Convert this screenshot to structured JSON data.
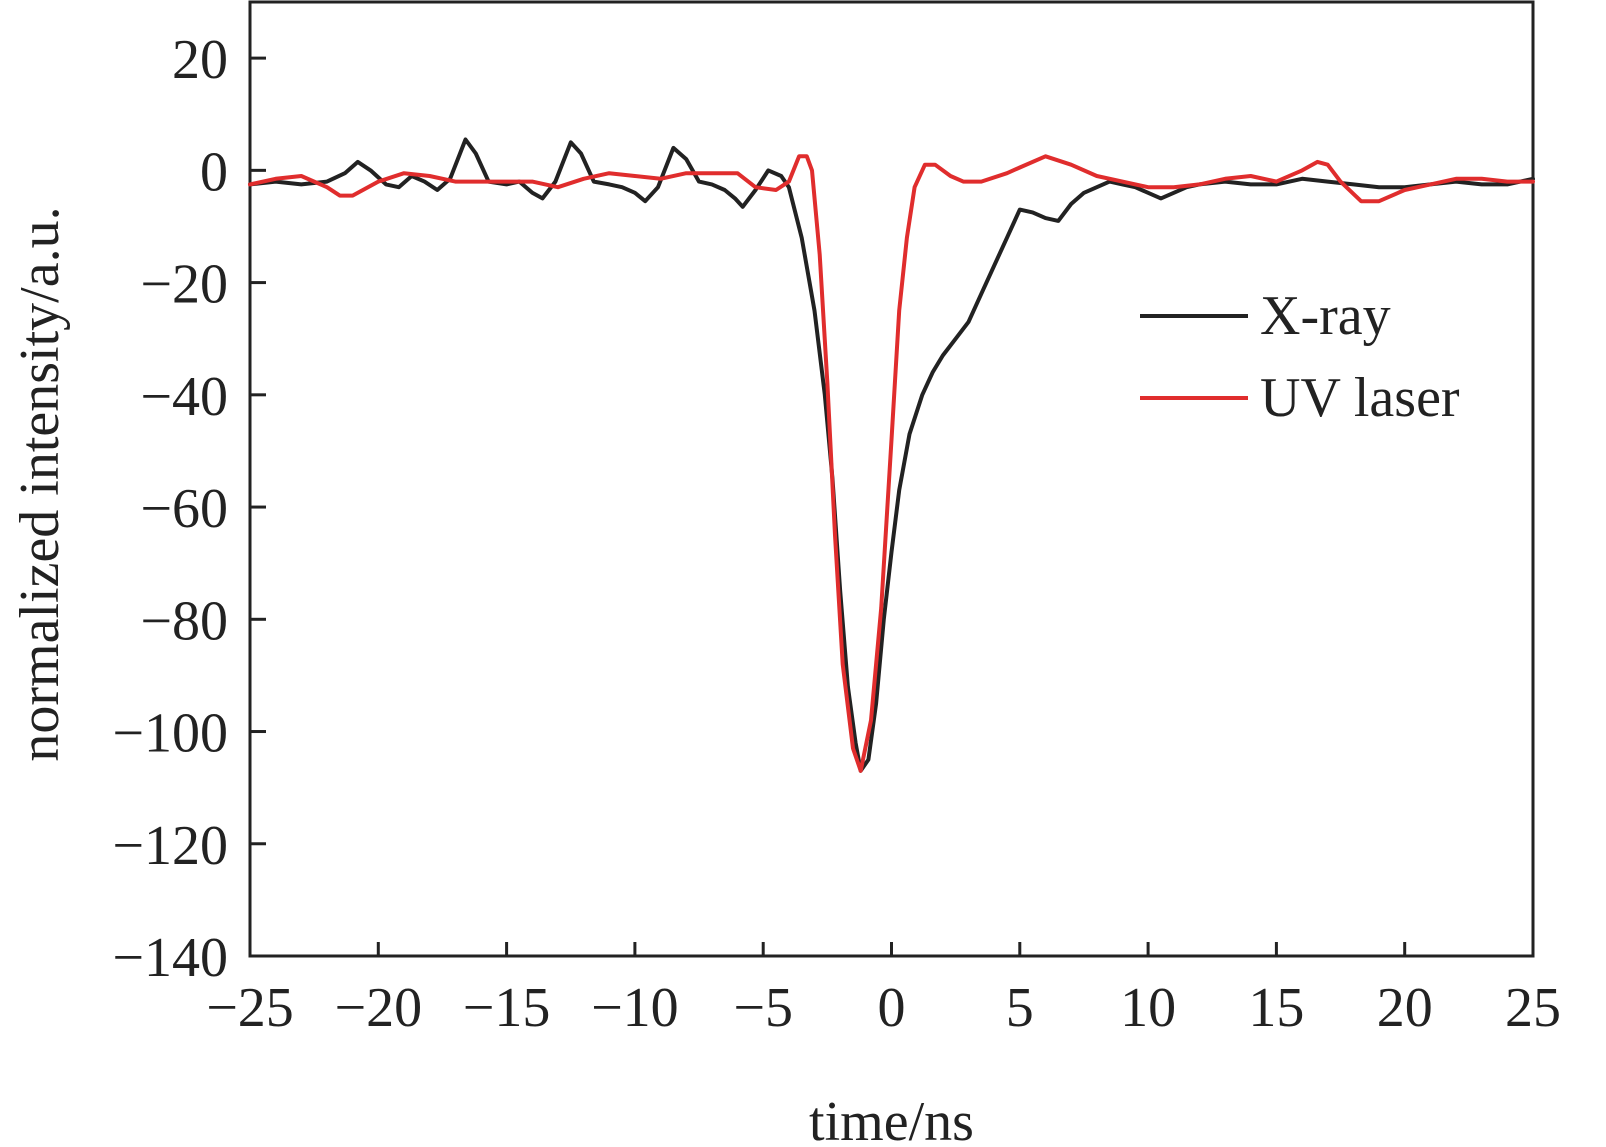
{
  "chart_data": {
    "type": "line",
    "xlabel": "time/ns",
    "ylabel": "normalized intensity/a.u.",
    "xlim": [
      -25,
      25
    ],
    "ylim": [
      -140,
      30
    ],
    "x_ticks": [
      -25,
      -20,
      -15,
      -10,
      -5,
      0,
      5,
      10,
      15,
      20,
      25
    ],
    "x_tick_labels": [
      "−25",
      "−20",
      "−15",
      "−10",
      "−5",
      "0",
      "5",
      "10",
      "15",
      "20",
      "25"
    ],
    "y_ticks": [
      20,
      0,
      -20,
      -40,
      -60,
      -80,
      -100,
      -120,
      -140
    ],
    "y_tick_labels": [
      "20",
      "0",
      "−20",
      "−40",
      "−60",
      "−80",
      "−100",
      "−120",
      "−140"
    ],
    "legend_position": "right",
    "series": [
      {
        "name": "X-ray",
        "color": "#222222",
        "points": [
          [
            -25,
            -2.5
          ],
          [
            -24,
            -2
          ],
          [
            -23,
            -2.5
          ],
          [
            -22,
            -2
          ],
          [
            -21.3,
            -0.5
          ],
          [
            -20.8,
            1.5
          ],
          [
            -20.3,
            0
          ],
          [
            -19.7,
            -2.5
          ],
          [
            -19.2,
            -3
          ],
          [
            -18.7,
            -1
          ],
          [
            -18.2,
            -2
          ],
          [
            -17.7,
            -3.5
          ],
          [
            -17.2,
            -1.5
          ],
          [
            -16.6,
            5.5
          ],
          [
            -16.2,
            3
          ],
          [
            -15.7,
            -2
          ],
          [
            -15,
            -2.5
          ],
          [
            -14.5,
            -2
          ],
          [
            -14,
            -4
          ],
          [
            -13.6,
            -5
          ],
          [
            -13.1,
            -2
          ],
          [
            -12.5,
            5
          ],
          [
            -12.1,
            3
          ],
          [
            -11.6,
            -2
          ],
          [
            -11,
            -2.5
          ],
          [
            -10.5,
            -3
          ],
          [
            -10,
            -4
          ],
          [
            -9.6,
            -5.5
          ],
          [
            -9.1,
            -3
          ],
          [
            -8.5,
            4
          ],
          [
            -8,
            2
          ],
          [
            -7.5,
            -2
          ],
          [
            -7,
            -2.5
          ],
          [
            -6.5,
            -3.5
          ],
          [
            -6.1,
            -5
          ],
          [
            -5.8,
            -6.5
          ],
          [
            -5.3,
            -3.5
          ],
          [
            -4.8,
            0
          ],
          [
            -4.3,
            -1
          ],
          [
            -4,
            -3
          ],
          [
            -3.5,
            -12
          ],
          [
            -3,
            -25
          ],
          [
            -2.6,
            -40
          ],
          [
            -2.3,
            -55
          ],
          [
            -2,
            -75
          ],
          [
            -1.7,
            -92
          ],
          [
            -1.4,
            -102
          ],
          [
            -1.2,
            -107
          ],
          [
            -0.9,
            -105
          ],
          [
            -0.6,
            -95
          ],
          [
            -0.3,
            -80
          ],
          [
            0,
            -68
          ],
          [
            0.3,
            -57
          ],
          [
            0.7,
            -47
          ],
          [
            1.2,
            -40
          ],
          [
            1.6,
            -36
          ],
          [
            2,
            -33
          ],
          [
            2.5,
            -30
          ],
          [
            3,
            -27
          ],
          [
            3.5,
            -22
          ],
          [
            4,
            -17
          ],
          [
            4.5,
            -12
          ],
          [
            5,
            -7
          ],
          [
            5.5,
            -7.5
          ],
          [
            6,
            -8.5
          ],
          [
            6.5,
            -9
          ],
          [
            7,
            -6
          ],
          [
            7.5,
            -4
          ],
          [
            8,
            -3
          ],
          [
            8.5,
            -2
          ],
          [
            9,
            -2.5
          ],
          [
            9.5,
            -3
          ],
          [
            10,
            -4
          ],
          [
            10.5,
            -5
          ],
          [
            11,
            -4
          ],
          [
            11.5,
            -3
          ],
          [
            12,
            -2.5
          ],
          [
            13,
            -2
          ],
          [
            14,
            -2.5
          ],
          [
            15,
            -2.5
          ],
          [
            16,
            -1.5
          ],
          [
            17,
            -2
          ],
          [
            18,
            -2.5
          ],
          [
            19,
            -3
          ],
          [
            20,
            -3
          ],
          [
            21,
            -2.5
          ],
          [
            22,
            -2
          ],
          [
            23,
            -2.5
          ],
          [
            24,
            -2.5
          ],
          [
            25,
            -1.5
          ]
        ]
      },
      {
        "name": "UV laser",
        "color": "#e02d2d",
        "points": [
          [
            -25,
            -2.5
          ],
          [
            -24,
            -1.5
          ],
          [
            -23,
            -1
          ],
          [
            -22,
            -3
          ],
          [
            -21.5,
            -4.5
          ],
          [
            -21,
            -4.5
          ],
          [
            -20,
            -2
          ],
          [
            -19,
            -0.5
          ],
          [
            -18,
            -1
          ],
          [
            -17,
            -2
          ],
          [
            -14,
            -2
          ],
          [
            -13,
            -3
          ],
          [
            -12,
            -1.5
          ],
          [
            -11,
            -0.5
          ],
          [
            -10,
            -1
          ],
          [
            -9,
            -1.5
          ],
          [
            -8,
            -0.5
          ],
          [
            -6,
            -0.5
          ],
          [
            -5.3,
            -3
          ],
          [
            -4.5,
            -3.5
          ],
          [
            -4,
            -2
          ],
          [
            -3.6,
            2.5
          ],
          [
            -3.3,
            2.5
          ],
          [
            -3.1,
            0
          ],
          [
            -2.8,
            -15
          ],
          [
            -2.5,
            -38
          ],
          [
            -2.2,
            -65
          ],
          [
            -1.9,
            -88
          ],
          [
            -1.5,
            -103
          ],
          [
            -1.2,
            -107
          ],
          [
            -0.8,
            -98
          ],
          [
            -0.4,
            -78
          ],
          [
            0,
            -48
          ],
          [
            0.3,
            -25
          ],
          [
            0.6,
            -12
          ],
          [
            0.9,
            -3
          ],
          [
            1.3,
            1
          ],
          [
            1.7,
            1
          ],
          [
            2.3,
            -1
          ],
          [
            2.8,
            -2
          ],
          [
            3.5,
            -2
          ],
          [
            4.5,
            -0.5
          ],
          [
            5,
            0.5
          ],
          [
            6,
            2.5
          ],
          [
            7,
            1
          ],
          [
            8,
            -1
          ],
          [
            9,
            -2
          ],
          [
            10,
            -3
          ],
          [
            11,
            -3
          ],
          [
            12,
            -2.5
          ],
          [
            13,
            -1.5
          ],
          [
            14,
            -1
          ],
          [
            15,
            -2
          ],
          [
            16,
            0
          ],
          [
            16.6,
            1.5
          ],
          [
            17,
            1
          ],
          [
            17.5,
            -2
          ],
          [
            18.3,
            -5.5
          ],
          [
            19,
            -5.5
          ],
          [
            20,
            -3.5
          ],
          [
            21,
            -2.5
          ],
          [
            22,
            -1.5
          ],
          [
            23,
            -1.5
          ],
          [
            24,
            -2
          ],
          [
            25,
            -2
          ]
        ]
      }
    ]
  }
}
